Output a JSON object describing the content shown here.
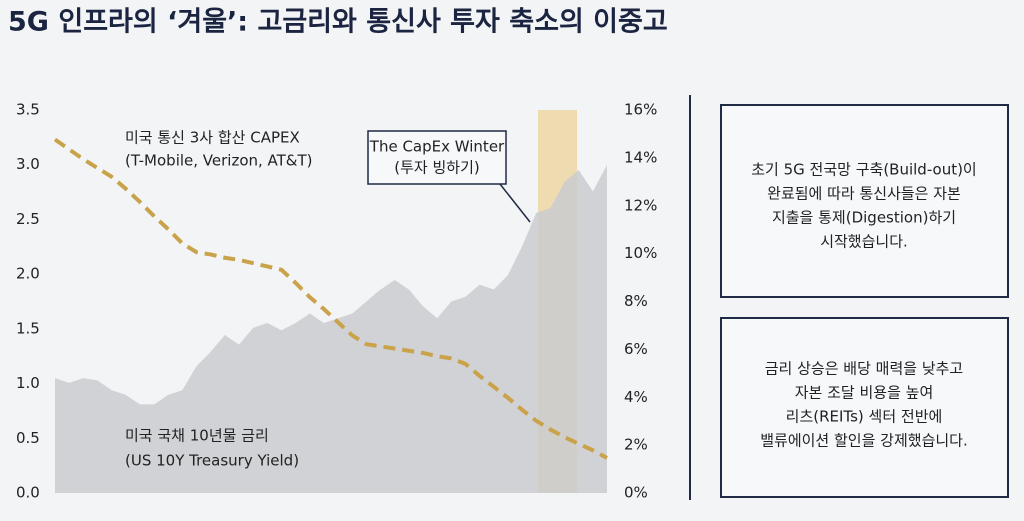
{
  "title": "5G 인프라의 ‘겨울’: 고금리와 통신사 투자 축소의 이중고",
  "chart_data": {
    "type": "area-line",
    "categories": [
      null,
      null,
      null,
      null,
      null,
      null,
      null,
      null,
      null,
      null,
      null,
      null,
      null,
      null,
      null,
      null,
      null,
      null,
      null,
      null,
      null,
      null,
      null,
      null,
      null,
      null,
      null,
      null,
      null,
      null,
      null,
      null,
      null,
      null,
      null,
      null,
      null,
      null,
      null,
      null
    ],
    "ylim": [
      0,
      3.5
    ],
    "yticks": [
      {
        "value": 0,
        "label": "0.0"
      },
      0.5,
      {
        "value": 1,
        "label": "1.0"
      },
      1.5,
      {
        "value": 2,
        "label": "2.0"
      },
      2.5,
      {
        "value": 3,
        "label": "3.0"
      },
      3.5
    ],
    "y2lim": [
      0,
      16
    ],
    "y2ticks": [
      {
        "value": 0,
        "label": "0%"
      },
      {
        "value": 2,
        "label": "2%"
      },
      {
        "value": 4,
        "label": "4%"
      },
      {
        "value": 6,
        "label": "6%"
      },
      {
        "value": 8,
        "label": "8%"
      },
      {
        "value": 10,
        "label": "10%"
      },
      {
        "value": 12,
        "label": "12%"
      },
      {
        "value": 14,
        "label": "14%"
      },
      {
        "value": 16,
        "label": "16%"
      }
    ],
    "series": [
      {
        "name": "미국 국채 10년물 금리",
        "subname": "(US 10Y Treasury Yield)",
        "style": "area",
        "axis": "y2",
        "color": "#c9cbcf",
        "values": [
          4.8,
          4.6,
          4.8,
          4.7,
          4.3,
          4.1,
          3.7,
          3.7,
          4.1,
          4.3,
          5.3,
          5.9,
          6.6,
          6.2,
          6.9,
          7.1,
          6.8,
          7.1,
          7.5,
          7.1,
          7.3,
          7.5,
          8.0,
          8.5,
          8.9,
          8.5,
          7.8,
          7.3,
          8.0,
          8.2,
          8.7,
          8.5,
          9.1,
          10.3,
          11.7,
          11.9,
          13.0,
          13.5,
          12.6,
          13.7
        ]
      },
      {
        "name": "미국 통신 3사 합산 CAPEX",
        "subname": "(T-Mobile, Verizon, AT&T)",
        "style": "dashed",
        "color": "#c9a24a",
        "values": [
          3.23,
          3.14,
          3.05,
          2.97,
          2.89,
          2.78,
          2.66,
          2.53,
          2.41,
          2.28,
          2.2,
          2.18,
          2.15,
          2.13,
          2.1,
          2.07,
          2.04,
          1.92,
          1.79,
          1.68,
          1.56,
          1.44,
          1.36,
          1.34,
          1.32,
          1.3,
          1.28,
          1.25,
          1.23,
          1.18,
          1.07,
          0.97,
          0.87,
          0.76,
          0.66,
          0.58,
          0.51,
          0.45,
          0.39,
          0.32
        ]
      }
    ],
    "annotation": [
      "The CapEx Winter",
      "(투자 빙하기)"
    ]
  },
  "notes": [
    [
      "초기 5G 전국망 구축(Build-out)이",
      "완료됨에 따라 통신사들은 자본",
      "지출을 통제(Digestion)하기",
      "시작했습니다."
    ],
    [
      "금리 상승은 배당 매력을 낮추고",
      "자본 조달 비용을 높여",
      "리츠(REITs) 섹터 전반에",
      "밸류에이션 할인을 강제했습니다."
    ]
  ]
}
